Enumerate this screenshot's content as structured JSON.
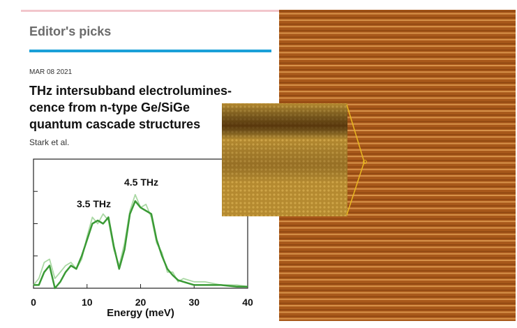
{
  "header": {
    "title": "Editor's picks"
  },
  "article": {
    "date": "MAR 08 2021",
    "title_lines": [
      "THz intersubband electrolumines-",
      "cence from n-type Ge/SiGe",
      "quantum cascade structures"
    ],
    "authors": "Stark et al."
  },
  "chart_data": {
    "type": "line",
    "x": [
      0,
      1,
      2,
      3,
      4,
      5,
      6,
      7,
      8,
      9,
      10,
      11,
      12,
      13,
      14,
      15,
      16,
      17,
      18,
      19,
      20,
      21,
      22,
      23,
      24,
      25,
      26,
      27,
      28,
      30,
      32,
      35,
      38,
      40
    ],
    "series": [
      {
        "color": "#a9d8a3",
        "values": [
          0.1,
          0.3,
          0.8,
          0.9,
          0.3,
          0.5,
          0.7,
          0.8,
          0.6,
          0.9,
          1.6,
          2.2,
          2.0,
          2.3,
          2.1,
          1.2,
          0.7,
          1.4,
          2.4,
          2.9,
          2.5,
          2.6,
          2.2,
          1.4,
          1.1,
          0.5,
          0.5,
          0.2,
          0.3,
          0.2,
          0.2,
          0.1,
          0.1,
          0.05
        ]
      },
      {
        "color": "#3a9a35",
        "values": [
          0.1,
          0.1,
          0.5,
          0.7,
          0.0,
          0.2,
          0.5,
          0.7,
          0.6,
          1.0,
          1.5,
          2.0,
          2.1,
          2.0,
          2.2,
          1.3,
          0.6,
          1.2,
          2.3,
          2.7,
          2.5,
          2.4,
          2.3,
          1.5,
          1.0,
          0.6,
          0.4,
          0.25,
          0.2,
          0.1,
          0.1,
          0.1,
          0.05,
          0.05
        ]
      }
    ],
    "annotations": [
      "3.5 THz",
      "4.5 THz"
    ],
    "x_label": "Energy (meV)",
    "xlim": [
      0,
      40
    ],
    "xticks": [
      0,
      10,
      20,
      30,
      40
    ],
    "ylim": [
      0,
      4
    ],
    "yticks": [
      0,
      1,
      2,
      3,
      4
    ]
  }
}
